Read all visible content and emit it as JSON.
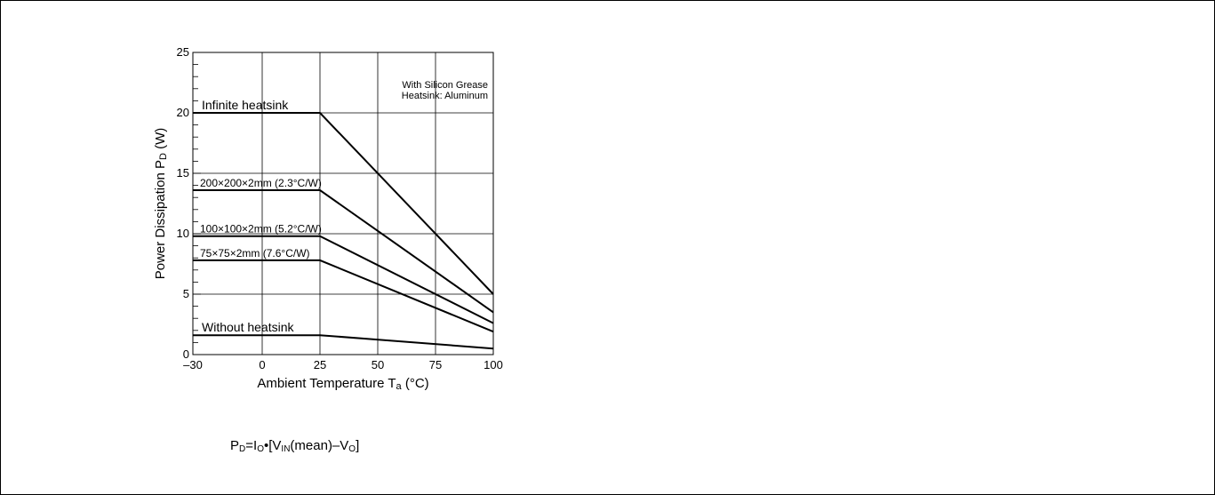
{
  "chart_data": {
    "type": "line",
    "xlabel": "Ambient Temperature T",
    "xlabel_sub": "a",
    "xlabel_unit": " (°C)",
    "ylabel": "Power Dissipation P",
    "ylabel_sub": "D",
    "ylabel_unit": " (W)",
    "xlim": [
      -30,
      100
    ],
    "ylim": [
      0,
      25
    ],
    "xticks": [
      "–30",
      "0",
      "25",
      "50",
      "75",
      "100"
    ],
    "xtick_values": [
      -30,
      0,
      25,
      50,
      75,
      100
    ],
    "yticks": [
      "0",
      "5",
      "10",
      "15",
      "20",
      "25"
    ],
    "ytick_values": [
      0,
      5,
      10,
      15,
      20,
      25
    ],
    "grid": true,
    "annotations": [
      "With Silicon Grease",
      "Heatsink: Aluminum"
    ],
    "series": [
      {
        "name": "Infinite heatsink",
        "x": [
          -30,
          25,
          100
        ],
        "y": [
          20,
          20,
          5
        ]
      },
      {
        "name": "200×200×2mm (2.3°C/W)",
        "x": [
          -30,
          25,
          100
        ],
        "y": [
          13.6,
          13.6,
          3.5
        ]
      },
      {
        "name": "100×100×2mm (5.2°C/W)",
        "x": [
          -30,
          25,
          100
        ],
        "y": [
          9.8,
          9.8,
          2.6
        ]
      },
      {
        "name": "75×75×2mm (7.6°C/W)",
        "x": [
          -30,
          25,
          100
        ],
        "y": [
          7.8,
          7.8,
          1.9
        ]
      },
      {
        "name": "Without heatsink",
        "x": [
          -30,
          25,
          100
        ],
        "y": [
          1.6,
          1.6,
          0.5
        ]
      }
    ]
  },
  "formula": {
    "p": "P",
    "p_sub": "D",
    "eq": "=I",
    "i_sub": "O",
    "dot": "•",
    "bracket_open": "[V",
    "v_sub": "IN",
    "mean": "(mean)–V",
    "vo_sub": "O",
    "bracket_close": "]"
  }
}
